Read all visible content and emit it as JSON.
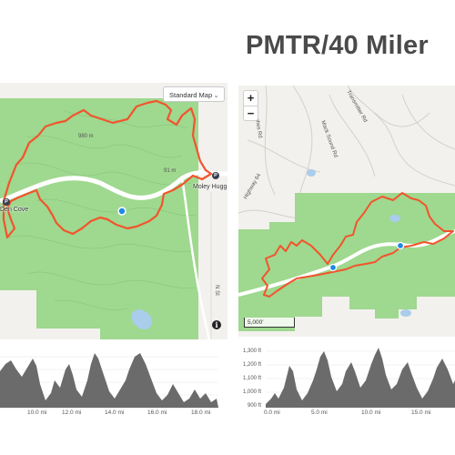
{
  "title": "PMTR/40 Miler",
  "colors": {
    "route": "#f2542d",
    "park": "#9fd88f",
    "marker": "#1e88e5",
    "profile": "#6b6b6b"
  },
  "left_map": {
    "map_style": "Standard Map",
    "places": [
      "Den Cove",
      "Moley Hugg"
    ],
    "contour_labels": [
      "980 m",
      "91 m"
    ],
    "road_labels": [
      "N St"
    ],
    "info_icon": "info-icon"
  },
  "right_map": {
    "zoom_in": "+",
    "zoom_out": "−",
    "scale": "5,000'",
    "road_labels": [
      "Transmitter Rd",
      "Hughes Rd",
      "Mack Sound Rd",
      "Highway 64"
    ]
  },
  "left_profile": {
    "xticks": [
      "10.0 mi",
      "12.0 mi",
      "14.0 mi",
      "16.0 mi",
      "18.0 mi"
    ]
  },
  "right_profile": {
    "yticks": [
      "1,300 ft",
      "1,200 ft",
      "1,100 ft",
      "1,000 ft",
      "900 ft"
    ],
    "xticks": [
      "0.0 mi",
      "5.0 mi",
      "10.0 mi",
      "15.0 mi"
    ]
  }
}
